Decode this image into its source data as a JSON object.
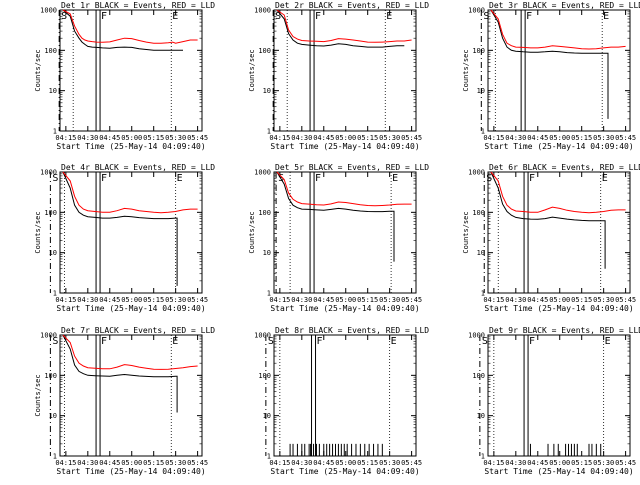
{
  "chart_data": [
    {
      "type": "line",
      "title": "Det 1r BLACK = Events, RED = LLD",
      "xlabel": "Start Time (25-May-14 04:09:40)",
      "ylabel": "Counts/sec",
      "ylim": [
        1,
        1000
      ],
      "yscale": "log",
      "x_ticks": [
        "04:15",
        "04:30",
        "04:45",
        "05:00",
        "05:15",
        "05:30",
        "05:45"
      ],
      "y_ticks": [
        "1",
        "10",
        "100",
        "1000"
      ],
      "markers": {
        "S": "04:20",
        "F": "04:37",
        "E": "05:27"
      },
      "series": [
        {
          "color": "#000000",
          "x": [
            "04:13",
            "04:18",
            "04:21",
            "04:24",
            "04:26",
            "04:28",
            "04:30",
            "04:33",
            "04:36",
            "04:40",
            "04:45",
            "04:50",
            "04:55",
            "05:00",
            "05:05",
            "05:10",
            "05:15",
            "05:20",
            "05:25",
            "05:28",
            "05:30",
            "05:35"
          ],
          "values": [
            1000,
            700,
            300,
            200,
            160,
            140,
            125,
            120,
            118,
            115,
            112,
            118,
            120,
            118,
            110,
            105,
            100,
            100,
            100,
            100,
            100,
            100
          ]
        },
        {
          "color": "#ff0000",
          "x": [
            "04:13",
            "04:18",
            "04:21",
            "04:24",
            "04:26",
            "04:28",
            "04:30",
            "04:33",
            "04:36",
            "04:40",
            "04:45",
            "04:50",
            "04:55",
            "05:00",
            "05:05",
            "05:10",
            "05:15",
            "05:20",
            "05:25",
            "05:28",
            "05:30",
            "05:35",
            "05:40",
            "05:45"
          ],
          "values": [
            1000,
            800,
            400,
            250,
            200,
            180,
            170,
            165,
            160,
            158,
            162,
            180,
            200,
            195,
            175,
            160,
            150,
            150,
            155,
            160,
            150,
            165,
            180,
            180
          ]
        }
      ]
    },
    {
      "type": "line",
      "title": "Det 2r BLACK = Events, RED = LLD",
      "xlabel": "Start Time (25-May-14 04:09:40)",
      "ylabel": "Counts/sec",
      "ylim": [
        1,
        1000
      ],
      "yscale": "log",
      "x_ticks": [
        "04:15",
        "04:30",
        "04:45",
        "05:00",
        "05:15",
        "05:30",
        "05:45"
      ],
      "y_ticks": [
        "1",
        "10",
        "100",
        "1000"
      ],
      "markers": {
        "S": "04:20",
        "F": "04:37",
        "E": "05:27"
      },
      "series": [
        {
          "color": "#000000",
          "x": [
            "04:13",
            "04:18",
            "04:21",
            "04:24",
            "04:27",
            "04:30",
            "04:35",
            "04:40",
            "04:45",
            "04:50",
            "04:55",
            "05:00",
            "05:05",
            "05:10",
            "05:15",
            "05:20",
            "05:25",
            "05:30",
            "05:35",
            "05:40"
          ],
          "values": [
            1000,
            600,
            260,
            180,
            150,
            140,
            135,
            130,
            128,
            135,
            145,
            140,
            130,
            125,
            120,
            120,
            120,
            125,
            130,
            130
          ]
        },
        {
          "color": "#ff0000",
          "x": [
            "04:13",
            "04:18",
            "04:21",
            "04:24",
            "04:27",
            "04:30",
            "04:35",
            "04:40",
            "04:45",
            "04:50",
            "04:55",
            "05:00",
            "05:05",
            "05:10",
            "05:15",
            "05:20",
            "05:25",
            "05:30",
            "05:35",
            "05:40",
            "05:45"
          ],
          "values": [
            1000,
            750,
            320,
            220,
            190,
            175,
            170,
            168,
            165,
            175,
            195,
            190,
            180,
            170,
            160,
            158,
            160,
            165,
            170,
            170,
            180
          ]
        }
      ]
    },
    {
      "type": "line",
      "title": "Det 3r BLACK = Events, RED = LLD",
      "xlabel": "Start Time (25-May-14 04:09:40)",
      "ylabel": "Counts/sec",
      "ylim": [
        1,
        1000
      ],
      "yscale": "log",
      "x_ticks": [
        "04:15",
        "04:30",
        "04:45",
        "05:00",
        "05:15",
        "05:30",
        "05:45"
      ],
      "y_ticks": [
        "1",
        "10",
        "100",
        "1000"
      ],
      "markers": {
        "S": "04:16",
        "F": "04:35",
        "E": "05:29"
      },
      "series": [
        {
          "color": "#000000",
          "x": [
            "04:13",
            "04:18",
            "04:21",
            "04:24",
            "04:27",
            "04:30",
            "04:35",
            "04:40",
            "04:45",
            "04:50",
            "04:55",
            "05:00",
            "05:05",
            "05:10",
            "05:15",
            "05:20",
            "05:25",
            "05:30",
            "05:33",
            "05:33",
            "05:33"
          ],
          "values": [
            1000,
            500,
            200,
            120,
            100,
            95,
            92,
            90,
            90,
            92,
            95,
            92,
            88,
            86,
            85,
            85,
            85,
            85,
            85,
            30,
            2
          ]
        },
        {
          "color": "#ff0000",
          "x": [
            "04:13",
            "04:18",
            "04:21",
            "04:24",
            "04:27",
            "04:30",
            "04:35",
            "04:40",
            "04:45",
            "04:50",
            "04:55",
            "05:00",
            "05:05",
            "05:10",
            "05:15",
            "05:20",
            "05:25",
            "05:30",
            "05:35",
            "05:40",
            "05:45"
          ],
          "values": [
            1000,
            600,
            250,
            150,
            130,
            120,
            118,
            115,
            115,
            120,
            130,
            125,
            120,
            115,
            110,
            108,
            110,
            115,
            120,
            120,
            125
          ]
        }
      ]
    },
    {
      "type": "line",
      "title": "Det 4r BLACK = Events, RED = LLD",
      "xlabel": "Start Time (25-May-14 04:09:40)",
      "ylabel": "Counts/sec",
      "ylim": [
        1,
        1000
      ],
      "yscale": "log",
      "x_ticks": [
        "04:15",
        "04:30",
        "04:45",
        "05:00",
        "05:15",
        "05:30",
        "05:45"
      ],
      "y_ticks": [
        "1",
        "10",
        "100",
        "1000"
      ],
      "markers": {
        "S": "04:14",
        "F": "04:37",
        "E": "05:30"
      },
      "series": [
        {
          "color": "#000000",
          "x": [
            "04:13",
            "04:18",
            "04:21",
            "04:24",
            "04:27",
            "04:30",
            "04:35",
            "04:40",
            "04:45",
            "04:50",
            "04:55",
            "05:00",
            "05:05",
            "05:10",
            "05:15",
            "05:20",
            "05:25",
            "05:30",
            "05:31",
            "05:31",
            "05:31"
          ],
          "values": [
            1000,
            400,
            150,
            100,
            85,
            78,
            75,
            72,
            72,
            75,
            80,
            78,
            74,
            72,
            70,
            70,
            70,
            72,
            72,
            20,
            1.5
          ]
        },
        {
          "color": "#ff0000",
          "x": [
            "04:13",
            "04:18",
            "04:21",
            "04:24",
            "04:27",
            "04:30",
            "04:35",
            "04:40",
            "04:45",
            "04:50",
            "04:55",
            "05:00",
            "05:05",
            "05:10",
            "05:15",
            "05:20",
            "05:25",
            "05:30",
            "05:35",
            "05:40",
            "05:45"
          ],
          "values": [
            1000,
            600,
            250,
            150,
            120,
            110,
            105,
            100,
            100,
            110,
            125,
            120,
            110,
            105,
            100,
            98,
            100,
            105,
            115,
            120,
            120
          ]
        }
      ]
    },
    {
      "type": "line",
      "title": "Det 5r BLACK = Events, RED = LLD",
      "xlabel": "Start Time (25-May-14 04:09:40)",
      "ylabel": "Counts/sec",
      "ylim": [
        1,
        1000
      ],
      "yscale": "log",
      "x_ticks": [
        "04:15",
        "04:30",
        "04:45",
        "05:00",
        "05:15",
        "05:30",
        "05:45"
      ],
      "y_ticks": [
        "1",
        "10",
        "100",
        "1000"
      ],
      "markers": {
        "S": "04:22",
        "F": "04:37",
        "E": "05:31"
      },
      "series": [
        {
          "color": "#000000",
          "x": [
            "04:13",
            "04:18",
            "04:21",
            "04:24",
            "04:27",
            "04:30",
            "04:35",
            "04:40",
            "04:45",
            "04:50",
            "04:55",
            "05:00",
            "05:05",
            "05:10",
            "05:15",
            "05:20",
            "05:25",
            "05:30",
            "05:33",
            "05:33",
            "05:33"
          ],
          "values": [
            1000,
            500,
            220,
            150,
            130,
            120,
            118,
            115,
            112,
            118,
            125,
            120,
            112,
            108,
            105,
            104,
            104,
            106,
            106,
            30,
            6
          ]
        },
        {
          "color": "#ff0000",
          "x": [
            "04:13",
            "04:18",
            "04:21",
            "04:24",
            "04:27",
            "04:30",
            "04:35",
            "04:40",
            "04:45",
            "04:50",
            "04:55",
            "05:00",
            "05:05",
            "05:10",
            "05:15",
            "05:20",
            "05:25",
            "05:30",
            "05:35",
            "05:40",
            "05:45"
          ],
          "values": [
            1000,
            650,
            300,
            210,
            180,
            165,
            160,
            155,
            152,
            162,
            180,
            175,
            165,
            155,
            148,
            145,
            148,
            152,
            158,
            160,
            160
          ]
        }
      ]
    },
    {
      "type": "line",
      "title": "Det 6r BLACK = Events, RED = LLD",
      "xlabel": "Start Time (25-May-14 04:09:40)",
      "ylabel": "Counts/sec",
      "ylim": [
        1,
        1000
      ],
      "yscale": "log",
      "x_ticks": [
        "04:15",
        "04:30",
        "04:45",
        "05:00",
        "05:15",
        "05:30",
        "05:45"
      ],
      "y_ticks": [
        "1",
        "10",
        "100",
        "1000"
      ],
      "markers": {
        "S": "04:18",
        "F": "04:37",
        "E": "05:28"
      },
      "series": [
        {
          "color": "#000000",
          "x": [
            "04:13",
            "04:18",
            "04:21",
            "04:24",
            "04:27",
            "04:30",
            "04:35",
            "04:40",
            "04:45",
            "04:50",
            "04:55",
            "05:00",
            "05:05",
            "05:10",
            "05:15",
            "05:20",
            "05:25",
            "05:30",
            "05:31",
            "05:31",
            "05:31"
          ],
          "values": [
            1000,
            400,
            160,
            105,
            85,
            75,
            70,
            68,
            67,
            70,
            76,
            72,
            68,
            65,
            63,
            62,
            62,
            62,
            62,
            20,
            4
          ]
        },
        {
          "color": "#ff0000",
          "x": [
            "04:13",
            "04:18",
            "04:21",
            "04:24",
            "04:27",
            "04:30",
            "04:35",
            "04:40",
            "04:45",
            "04:50",
            "04:55",
            "05:00",
            "05:05",
            "05:10",
            "05:15",
            "05:20",
            "05:25",
            "05:30",
            "05:35",
            "05:40",
            "05:45"
          ],
          "values": [
            1000,
            600,
            250,
            150,
            120,
            108,
            105,
            100,
            100,
            115,
            135,
            125,
            112,
            105,
            100,
            98,
            100,
            105,
            112,
            115,
            115
          ]
        }
      ]
    },
    {
      "type": "line",
      "title": "Det 7r BLACK = Events, RED = LLD",
      "xlabel": "Start Time (25-May-14 04:09:40)",
      "ylabel": "Counts/sec",
      "ylim": [
        1,
        1000
      ],
      "yscale": "log",
      "x_ticks": [
        "04:15",
        "04:30",
        "04:45",
        "05:00",
        "05:15",
        "05:30",
        "05:45"
      ],
      "y_ticks": [
        "1",
        "10",
        "100",
        "1000"
      ],
      "markers": {
        "S": "04:14",
        "F": "04:37",
        "E": "05:27"
      },
      "series": [
        {
          "color": "#000000",
          "x": [
            "04:13",
            "04:18",
            "04:21",
            "04:24",
            "04:27",
            "04:30",
            "04:35",
            "04:40",
            "04:45",
            "04:50",
            "04:55",
            "05:00",
            "05:05",
            "05:10",
            "05:15",
            "05:20",
            "05:25",
            "05:30",
            "05:31",
            "05:31",
            "05:31"
          ],
          "values": [
            1000,
            450,
            180,
            125,
            110,
            100,
            98,
            96,
            95,
            100,
            105,
            100,
            96,
            94,
            92,
            92,
            92,
            95,
            95,
            40,
            12
          ]
        },
        {
          "color": "#ff0000",
          "x": [
            "04:13",
            "04:18",
            "04:21",
            "04:24",
            "04:27",
            "04:30",
            "04:35",
            "04:40",
            "04:45",
            "04:50",
            "04:55",
            "05:00",
            "05:05",
            "05:10",
            "05:15",
            "05:20",
            "05:25",
            "05:30",
            "05:35",
            "05:40",
            "05:45"
          ],
          "values": [
            1000,
            650,
            300,
            200,
            170,
            155,
            150,
            145,
            145,
            160,
            185,
            175,
            160,
            150,
            142,
            140,
            142,
            148,
            155,
            165,
            170
          ]
        }
      ]
    },
    {
      "type": "bar",
      "title": "Det 8r BLACK = Events, RED = LLD",
      "xlabel": "Start Time (25-May-14 04:09:40)",
      "ylabel": "",
      "ylim": [
        1,
        1000
      ],
      "yscale": "log",
      "x_ticks": [
        "04:15",
        "04:30",
        "04:45",
        "05:00",
        "05:15",
        "05:30",
        "05:45"
      ],
      "y_ticks": [
        "1",
        "10",
        "100",
        "1000"
      ],
      "markers": {
        "S": "04:15",
        "F": "04:38",
        "E": "05:30"
      },
      "spikes": {
        "color": "#000000",
        "x": [
          "04:22",
          "04:24",
          "04:27",
          "04:30",
          "04:32",
          "04:35",
          "04:36",
          "04:38",
          "04:40",
          "04:42",
          "04:45",
          "04:47",
          "04:49",
          "04:51",
          "04:53",
          "04:55",
          "04:57",
          "04:59",
          "05:01",
          "05:04",
          "05:07",
          "05:10",
          "05:13",
          "05:16",
          "05:19",
          "05:22",
          "05:25"
        ],
        "values": [
          2,
          2,
          2,
          2,
          2,
          2,
          2,
          2,
          2,
          2,
          2,
          2,
          2,
          2,
          2,
          2,
          2,
          2,
          2,
          2,
          2,
          2,
          2,
          2,
          2,
          2,
          2
        ]
      }
    },
    {
      "type": "bar",
      "title": "Det 9r BLACK = Events, RED = LLD",
      "xlabel": "Start Time (25-May-14 04:09:40)",
      "ylabel": "",
      "ylim": [
        1,
        1000
      ],
      "yscale": "log",
      "x_ticks": [
        "04:15",
        "04:30",
        "04:45",
        "05:00",
        "05:15",
        "05:30",
        "05:45"
      ],
      "y_ticks": [
        "1",
        "10",
        "100",
        "1000"
      ],
      "markers": {
        "S": "04:15",
        "F": "04:37",
        "E": "05:30"
      },
      "spikes": {
        "color": "#000000",
        "x": [
          "04:40",
          "04:52",
          "04:56",
          "04:59",
          "05:04",
          "05:06",
          "05:08",
          "05:10",
          "05:12",
          "05:20",
          "05:22",
          "05:25",
          "05:28"
        ],
        "values": [
          2,
          2,
          2,
          2,
          2,
          2,
          2,
          2,
          2,
          2,
          2,
          2,
          2
        ]
      }
    }
  ]
}
